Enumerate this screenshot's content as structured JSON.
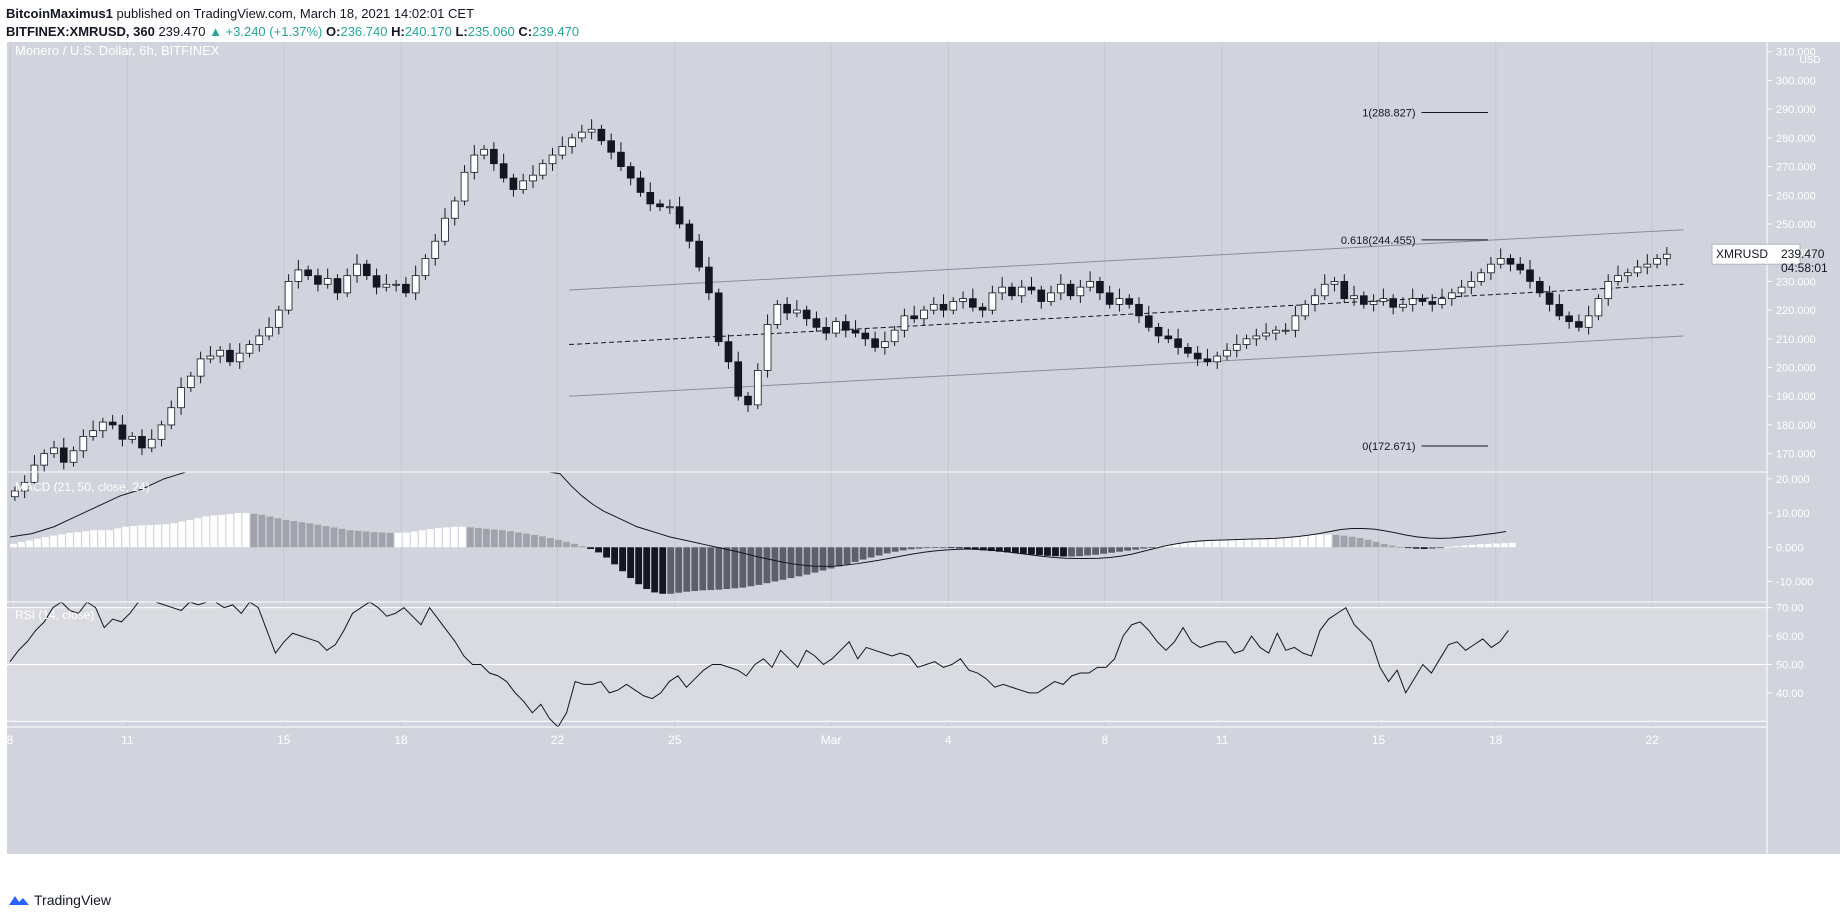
{
  "header": {
    "author": "BitcoinMaximus1",
    "published_text": "published on TradingView.com, March 18, 2021 14:02:01 CET",
    "symbol_line": "BITFINEX:XMRUSD, 360",
    "last": "239.470",
    "change": "▲ +3.240 (+1.37%)",
    "o_label": "O:",
    "o": "236.740",
    "h_label": "H:",
    "h": "240.170",
    "l_label": "L:",
    "l": "235.060",
    "c_label": "C:",
    "c": "239.470"
  },
  "footer": {
    "brand": "TradingView"
  },
  "colors": {
    "background": "#d1d4dc",
    "bull": "#ffffff",
    "bear": "#131722",
    "accent": "#26a69a"
  },
  "chart_data": [
    {
      "type": "candlestick",
      "title": "Monero / U.S. Dollar, 6h, BITFINEX",
      "currency": "USD",
      "symbol_tag": "XMRUSD",
      "last_price": "239.470",
      "countdown": "04:58:01",
      "ylim": [
        165,
        312
      ],
      "y_ticks": [
        "170.000",
        "180.000",
        "190.000",
        "200.000",
        "210.000",
        "220.000",
        "230.000",
        "240.000",
        "250.000",
        "260.000",
        "270.000",
        "280.000",
        "290.000",
        "300.000",
        "310.000"
      ],
      "x_ticks": [
        {
          "label": "8",
          "day": 0
        },
        {
          "label": "11",
          "day": 3
        },
        {
          "label": "15",
          "day": 7
        },
        {
          "label": "18",
          "day": 10
        },
        {
          "label": "22",
          "day": 14
        },
        {
          "label": "25",
          "day": 17
        },
        {
          "label": "Mar",
          "day": 21
        },
        {
          "label": "4",
          "day": 24
        },
        {
          "label": "8",
          "day": 28
        },
        {
          "label": "11",
          "day": 31
        },
        {
          "label": "15",
          "day": 35
        },
        {
          "label": "18",
          "day": 38
        },
        {
          "label": "22",
          "day": 42
        }
      ],
      "x_start": "2021-02-08",
      "close_series": [
        157,
        160,
        166,
        170,
        172,
        167,
        171,
        176,
        178,
        181,
        180,
        175,
        176,
        172,
        175,
        180,
        186,
        193,
        197,
        203,
        204,
        206,
        202,
        205,
        208,
        211,
        214,
        220,
        230,
        234,
        232,
        229,
        231,
        226,
        232,
        236,
        232,
        228,
        229,
        229,
        226,
        232,
        238,
        244,
        252,
        258,
        268,
        274,
        276,
        271,
        266,
        262,
        265,
        267,
        271,
        274,
        277,
        280,
        282,
        283,
        279,
        275,
        270,
        266,
        261,
        257,
        256,
        256,
        250,
        244,
        235,
        226,
        209,
        202,
        190,
        187,
        199,
        215,
        222,
        219,
        220,
        217,
        214,
        212,
        216,
        213,
        212,
        210,
        207,
        209,
        213,
        218,
        217,
        220,
        222,
        220,
        223,
        224,
        221,
        220,
        226,
        228,
        225,
        228,
        227,
        223,
        226,
        229,
        225,
        228,
        230,
        226,
        222,
        224,
        222,
        218,
        214,
        211,
        210,
        207,
        205,
        203,
        202,
        204,
        206,
        208,
        210,
        211,
        212,
        213,
        213,
        218,
        222,
        225,
        229,
        230,
        224,
        225,
        222,
        223,
        224,
        221,
        222,
        224,
        223,
        222,
        224,
        226,
        228,
        230,
        233,
        236,
        238,
        236,
        234,
        230,
        226,
        222,
        218,
        216,
        214,
        218,
        224,
        230,
        232,
        233,
        235,
        236,
        238,
        239.47
      ],
      "fibonacci": [
        {
          "label": "1(288.827)",
          "value": 288.827
        },
        {
          "label": "0.618(244.455)",
          "value": 244.455
        },
        {
          "label": "0(172.671)",
          "value": 172.671
        }
      ],
      "channel": {
        "upper": [
          {
            "day": 14.3,
            "value": 227
          },
          {
            "day": 42.8,
            "value": 248
          }
        ],
        "middle": [
          {
            "day": 14.3,
            "value": 208
          },
          {
            "day": 42.8,
            "value": 229
          }
        ],
        "lower": [
          {
            "day": 14.3,
            "value": 190
          },
          {
            "day": 42.8,
            "value": 211
          }
        ]
      }
    },
    {
      "type": "bar",
      "title": "MACD (21, 50, close, 24)",
      "ylim": [
        -16,
        22
      ],
      "y_ticks": [
        "20.000",
        "10.000",
        "0.000",
        "-10.000"
      ],
      "histogram": [
        1,
        1.5,
        2,
        2.5,
        3,
        3.4,
        3.8,
        4.2,
        4.4,
        4.7,
        5,
        5,
        5,
        5.5,
        6,
        6.2,
        6.4,
        6.5,
        6.6,
        6.7,
        7,
        7.5,
        8,
        8.5,
        9,
        9.3,
        9.5,
        9.7,
        10,
        10,
        9.8,
        9.5,
        9,
        8.5,
        8,
        7.7,
        7.3,
        7,
        6.6,
        6.2,
        5.8,
        5.4,
        5,
        4.8,
        4.6,
        4.4,
        4.3,
        4.2,
        4.2,
        4.3,
        4.6,
        5,
        5.3,
        5.6,
        5.8,
        6,
        6,
        5.8,
        5.6,
        5.4,
        5.2,
        5,
        4.7,
        4.3,
        4,
        3.6,
        3.2,
        2.7,
        2.2,
        1.6,
        1,
        0.3,
        -0.5,
        -1.5,
        -3,
        -5,
        -7,
        -9,
        -10.8,
        -12.2,
        -13.2,
        -13.6,
        -13.6,
        -13.3,
        -13,
        -12.8,
        -12.6,
        -12.5,
        -12.4,
        -12.2,
        -12,
        -11.8,
        -11.4,
        -11,
        -10.5,
        -10,
        -9.5,
        -9,
        -8.5,
        -8,
        -7.4,
        -6.8,
        -6.2,
        -5.6,
        -5,
        -4.3,
        -3.6,
        -3,
        -2.4,
        -1.8,
        -1.3,
        -0.9,
        -0.6,
        -0.4,
        -0.2,
        -0.1,
        -0.1,
        -0.2,
        -0.3,
        -0.5,
        -0.7,
        -0.9,
        -1.1,
        -1.3,
        -1.5,
        -1.7,
        -1.9,
        -2.1,
        -2.3,
        -2.5,
        -2.6,
        -2.7,
        -2.7,
        -2.6,
        -2.4,
        -2.2,
        -1.9,
        -1.6,
        -1.3,
        -1,
        -0.7,
        -0.4,
        -0.1,
        0.3,
        0.7,
        1,
        1.2,
        1.4,
        1.6,
        1.8,
        2,
        2.1,
        2.2,
        2.3,
        2.4,
        2.5,
        2.6,
        2.7,
        2.8,
        3,
        3.2,
        3.4,
        3.6,
        3.7,
        3.7,
        3.6,
        3.4,
        3.1,
        2.7,
        2.2,
        1.6,
        1,
        0.5,
        0.1,
        -0.2,
        -0.4,
        -0.5,
        -0.4,
        -0.2,
        0.1,
        0.3,
        0.5,
        0.7,
        0.9,
        1,
        1.1,
        1.2,
        1.3
      ],
      "macd_line": [
        3,
        3.5,
        4,
        5,
        6,
        7.5,
        9,
        10.5,
        12,
        13.5,
        15,
        16,
        17,
        18.5,
        20,
        21,
        22,
        23,
        24,
        25,
        26.5,
        28,
        29.5,
        31,
        32,
        33,
        33.5,
        33,
        32,
        30.5,
        29,
        28,
        27,
        26.5,
        26.5,
        27,
        28,
        29.5,
        31,
        32.5,
        34,
        35,
        35.5,
        35,
        34.5,
        33.5,
        32,
        30,
        27.5,
        24.5,
        21.5,
        18,
        15,
        12.5,
        10.5,
        9,
        7.5,
        6,
        5,
        4,
        3,
        2.3,
        1.6,
        0.9,
        0.2,
        -0.5,
        -1.2,
        -2,
        -2.8,
        -3.5,
        -4.2,
        -4.8,
        -5.2,
        -5.5,
        -5.6,
        -5.5,
        -5.2,
        -4.8,
        -4.3,
        -3.8,
        -3.2,
        -2.6,
        -2,
        -1.5,
        -1.1,
        -0.8,
        -0.6,
        -0.5,
        -0.6,
        -0.8,
        -1.1,
        -1.5,
        -1.9,
        -2.3,
        -2.7,
        -3,
        -3.2,
        -3.3,
        -3.3,
        -3.2,
        -3,
        -2.6,
        -2,
        -1.2,
        -0.4,
        0.4,
        1,
        1.5,
        1.8,
        2,
        2.1,
        2.2,
        2.3,
        2.4,
        2.5,
        2.6,
        2.8,
        3.1,
        3.5,
        4,
        4.6,
        5.2,
        5.5,
        5.5,
        5.3,
        4.8,
        4.2,
        3.5,
        3,
        2.7,
        2.6,
        2.7,
        3,
        3.3,
        3.7,
        4.1,
        4.6
      ],
      "zero_label": "0.000"
    },
    {
      "type": "line",
      "title": "RSI (14, close)",
      "ylim": [
        28,
        72
      ],
      "y_ticks": [
        "70.00",
        "60.00",
        "50.00",
        "40.00"
      ],
      "bands": [
        70,
        50,
        30
      ],
      "values": [
        51,
        55,
        58,
        62,
        65,
        70,
        72,
        69,
        68,
        72,
        70,
        63,
        66,
        65,
        68,
        72,
        72,
        74,
        71,
        70,
        69,
        72,
        71,
        73,
        72,
        70,
        71,
        68,
        72,
        70,
        62,
        54,
        58,
        61,
        60,
        59,
        58,
        55,
        57,
        62,
        68,
        70,
        74,
        70,
        67,
        68,
        70,
        67,
        64,
        70,
        66,
        62,
        58,
        53,
        50,
        50,
        47,
        46,
        44,
        40,
        37,
        33,
        36,
        31,
        27,
        33,
        44,
        43,
        43,
        44,
        40,
        41,
        43,
        41,
        39,
        38,
        40,
        44,
        46,
        42,
        45,
        48,
        50,
        50,
        49,
        48,
        46,
        50,
        52,
        49,
        55,
        52,
        49,
        55,
        53,
        50,
        52,
        55,
        58,
        52,
        56,
        55,
        54,
        53,
        54,
        53,
        49,
        50,
        51,
        49,
        50,
        52,
        48,
        47,
        45,
        42,
        43,
        42,
        41,
        40,
        40,
        42,
        44,
        43,
        46,
        47,
        47,
        49,
        49,
        52,
        60,
        64,
        65,
        62,
        58,
        55,
        58,
        63,
        58,
        56,
        57,
        58,
        58,
        54,
        55,
        60,
        56,
        54,
        61,
        55,
        56,
        54,
        53,
        62,
        66,
        68,
        70,
        64,
        61,
        58,
        49,
        44,
        48,
        40,
        45,
        50,
        47,
        52,
        57,
        58,
        55,
        57,
        59,
        56,
        58,
        62
      ]
    }
  ]
}
